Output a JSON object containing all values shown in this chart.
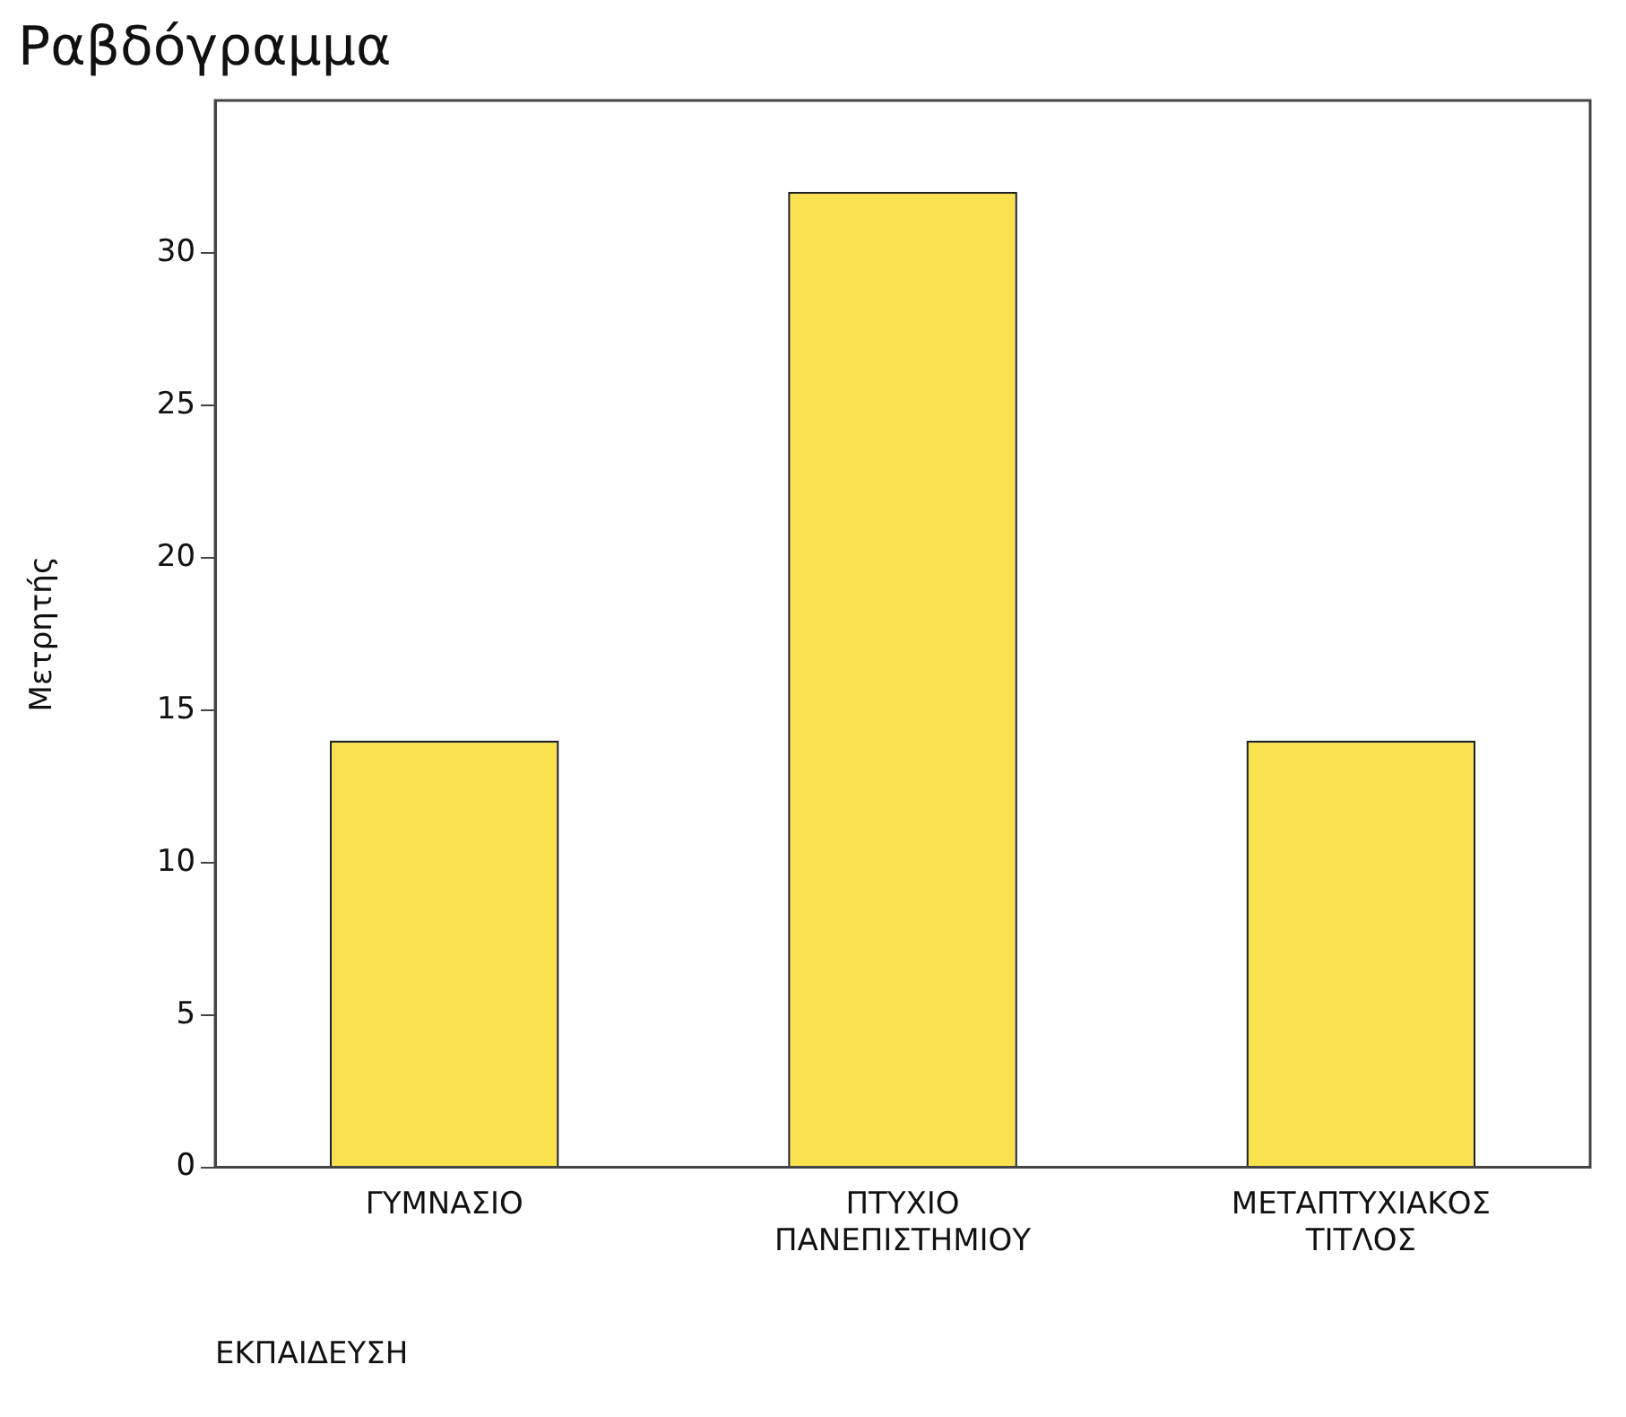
{
  "chart_data": {
    "type": "bar",
    "title": "Ραβδόγραμμα",
    "xlabel": "ΕΚΠΑΙΔΕΥΣΗ",
    "ylabel": "Μετρητής",
    "categories": [
      "ΓΥΜΝΑΣΙΟ",
      "ΠΤΥΧΙΟ ΠΑΝΕΠΙΣΤΗΜΙΟΥ",
      "ΜΕΤΑΠΤΥΧΙΑΚΟΣ ΤΙΤΛΟΣ"
    ],
    "values": [
      14,
      32,
      14
    ],
    "color": "#f9e24e",
    "ylim": [
      0,
      35
    ],
    "yticks": [
      0,
      5,
      10,
      15,
      20,
      25,
      30
    ],
    "grid": false,
    "legend": false
  }
}
